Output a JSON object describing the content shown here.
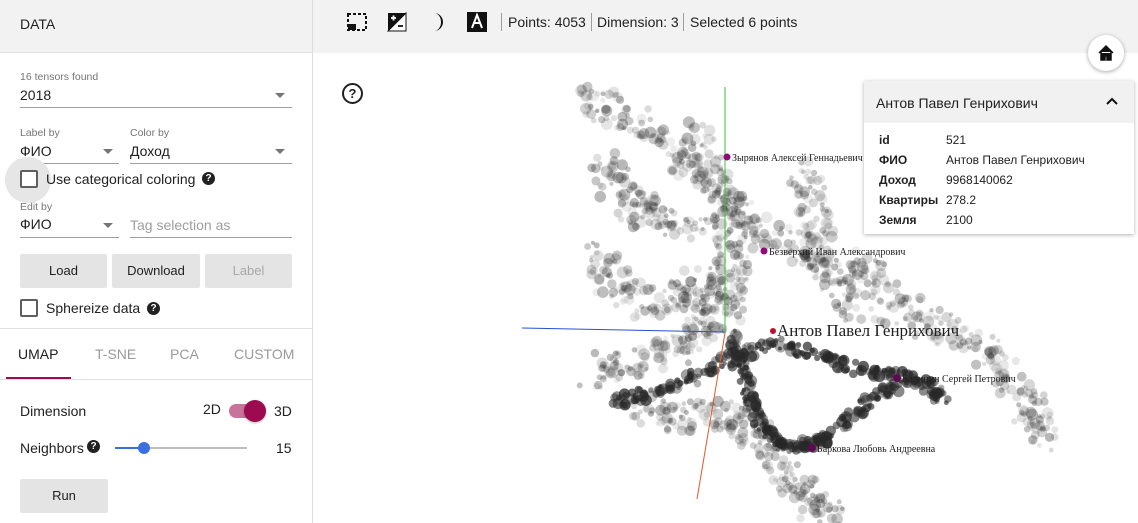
{
  "left_panel": {
    "header": "DATA",
    "tensors_found": "16 tensors found",
    "tensor_value": "2018",
    "label_by": {
      "label": "Label by",
      "value": "ФИО"
    },
    "color_by": {
      "label": "Color by",
      "value": "Доход"
    },
    "categorical": {
      "label": "Use categorical coloring",
      "checked": false
    },
    "edit_by": {
      "label": "Edit by",
      "value": "ФИО"
    },
    "tag_selection": {
      "placeholder": "Tag selection as"
    },
    "buttons": {
      "load": "Load",
      "download": "Download",
      "label": "Label"
    },
    "sphereize": {
      "label": "Sphereize data",
      "checked": false
    },
    "tabs": [
      "UMAP",
      "T-SNE",
      "PCA",
      "CUSTOM"
    ],
    "active_tab": "UMAP",
    "dimension": {
      "label": "Dimension",
      "left": "2D",
      "right": "3D",
      "selected": "3D"
    },
    "neighbors": {
      "label": "Neighbors",
      "value": "15",
      "min": 5,
      "max": 50,
      "current": 15
    },
    "run": "Run"
  },
  "topbar": {
    "icons": [
      "select-rectangle-icon",
      "night-mode-contrast-icon",
      "moon-icon",
      "label-font-icon"
    ],
    "points": "Points: 4053",
    "dimension": "Dimension: 3",
    "selected": "Selected 6 points"
  },
  "inspector": {
    "title": "Антов Павел Генрихович",
    "fields": [
      {
        "key": "id",
        "value": "521"
      },
      {
        "key": "ФИО",
        "value": "Антов Павел Генрихович"
      },
      {
        "key": "Доход",
        "value": "9968140062"
      },
      {
        "key": "Квартиры",
        "value": "278.2"
      },
      {
        "key": "Земля",
        "value": "2100"
      }
    ]
  },
  "plot": {
    "point_labels": [
      {
        "text": "Зырянов Алексей Геннадьевич",
        "big": false
      },
      {
        "text": "Безверхий Иван Александрович",
        "big": false
      },
      {
        "text": "Антов Павел Генрихович",
        "big": true
      },
      {
        "text": "Калинин Сергей Петрович",
        "big": false
      },
      {
        "text": "Баркова Любовь Андреевна",
        "big": false
      }
    ],
    "colors": {
      "axis_x": "#2a4fd6",
      "axis_y": "#39c239",
      "axis_z": "#e05a2a",
      "selected_point": "#8e0b7c",
      "accent": "#9c0a4f",
      "slider": "#3b6fe0"
    }
  }
}
